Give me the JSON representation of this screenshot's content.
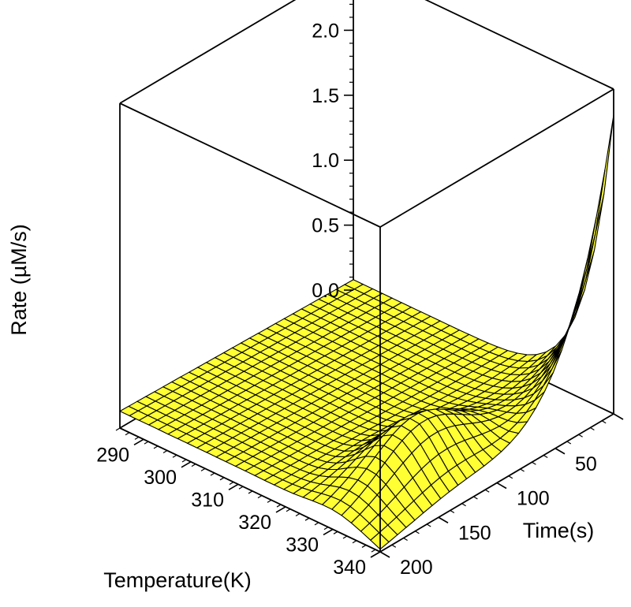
{
  "chart_data": {
    "type": "surface",
    "title": "",
    "zlabel": "Rate (µM/s)",
    "xlabel": "Temperature(K)",
    "ylabel": "Time(s)",
    "x_range": [
      285,
      340
    ],
    "y_range": [
      0,
      200
    ],
    "z_range": [
      0,
      2.5
    ],
    "x_ticks": [
      "290",
      "300",
      "310",
      "320",
      "330",
      "340"
    ],
    "y_ticks": [
      "0",
      "50",
      "100",
      "150",
      "200"
    ],
    "z_ticks": [
      "0.0",
      "0.5",
      "1.0",
      "1.5",
      "2.0",
      "2.5"
    ],
    "surface_color": "#ffff33",
    "grid_color": "#000000",
    "surface_grid": {
      "temperature_steps": 27,
      "time_steps": 27
    },
    "key_points": [
      {
        "temperature": 285,
        "time": 0,
        "rate": 0.08
      },
      {
        "temperature": 285,
        "time": 200,
        "rate": 0.1
      },
      {
        "temperature": 330,
        "time": 150,
        "rate": 0.42
      },
      {
        "temperature": 340,
        "time": 200,
        "rate": 0.0
      },
      {
        "temperature": 340,
        "time": 50,
        "rate": 0.62
      },
      {
        "temperature": 340,
        "time": 0,
        "rate": 2.3
      }
    ]
  }
}
